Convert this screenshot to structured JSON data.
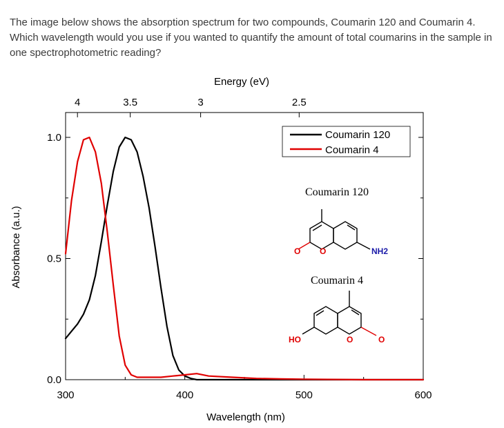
{
  "question": "The image below shows the absorption spectrum for two compounds, Coumarin 120 and Coumarin 4. Which wavelength would you use if you wanted to quantify the amount of total coumarins in the sample in one spectrophotometric reading?",
  "chart_data": {
    "type": "line",
    "xlabel": "Wavelength (nm)",
    "ylabel": "Absorbance (a.u.)",
    "top_axis_label": "Energy (eV)",
    "xlim": [
      300,
      600
    ],
    "ylim": [
      0,
      1.0
    ],
    "x_ticks": [
      "300",
      "400",
      "500",
      "600"
    ],
    "y_ticks": [
      "0.0",
      "0.5",
      "1.0"
    ],
    "top_ticks": [
      "4",
      "3.5",
      "3",
      "2.5"
    ],
    "grid": false,
    "legend_position": "top-right",
    "series": [
      {
        "name": "Coumarin 120",
        "color": "#000000",
        "x": [
          300,
          305,
          310,
          315,
          320,
          325,
          330,
          335,
          340,
          345,
          350,
          355,
          360,
          365,
          370,
          375,
          380,
          385,
          390,
          395,
          400,
          405,
          410,
          420,
          450,
          500,
          550,
          600
        ],
        "y": [
          0.17,
          0.2,
          0.23,
          0.27,
          0.33,
          0.43,
          0.57,
          0.72,
          0.86,
          0.96,
          1.0,
          0.99,
          0.94,
          0.84,
          0.71,
          0.55,
          0.38,
          0.22,
          0.1,
          0.04,
          0.015,
          0.005,
          0.0,
          0.0,
          0.0,
          0.0,
          0.0,
          0.0
        ]
      },
      {
        "name": "Coumarin 4",
        "color": "#e00000",
        "x": [
          300,
          305,
          310,
          315,
          320,
          325,
          330,
          335,
          340,
          345,
          350,
          355,
          360,
          370,
          380,
          390,
          400,
          410,
          420,
          440,
          460,
          480,
          500,
          550,
          600
        ],
        "y": [
          0.52,
          0.74,
          0.9,
          0.99,
          1.0,
          0.94,
          0.81,
          0.61,
          0.39,
          0.18,
          0.06,
          0.02,
          0.01,
          0.01,
          0.01,
          0.015,
          0.02,
          0.025,
          0.015,
          0.01,
          0.005,
          0.003,
          0.002,
          0.0,
          0.0
        ]
      }
    ]
  },
  "structures": {
    "c120_title": "Coumarin 120",
    "c4_title": "Coumarin 4",
    "atom_o": "O",
    "atom_nh2": "NH2",
    "atom_ho": "HO"
  }
}
